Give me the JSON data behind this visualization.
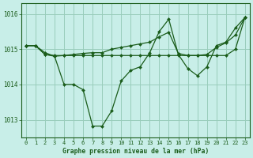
{
  "bg_color": "#c8eee8",
  "grid_color": "#99ccbb",
  "line_color": "#1a5c1a",
  "marker_color": "#1a5c1a",
  "xlabel": "Graphe pression niveau de la mer (hPa)",
  "xlabel_color": "#1a5c1a",
  "xlim": [
    -0.5,
    23.5
  ],
  "ylim": [
    1012.5,
    1016.3
  ],
  "yticks": [
    1013,
    1014,
    1015,
    1016
  ],
  "xticks": [
    0,
    1,
    2,
    3,
    4,
    5,
    6,
    7,
    8,
    9,
    10,
    11,
    12,
    13,
    14,
    15,
    16,
    17,
    18,
    19,
    20,
    21,
    22,
    23
  ],
  "series": [
    {
      "x": [
        0,
        1,
        2,
        3,
        4,
        5,
        6,
        7,
        8,
        9,
        10,
        11,
        12,
        13,
        14,
        15,
        16,
        17,
        18,
        19,
        20,
        21,
        22,
        23
      ],
      "y": [
        1015.1,
        1015.1,
        1014.9,
        1014.8,
        1014.0,
        1014.0,
        1013.85,
        1012.82,
        1012.82,
        1013.25,
        1014.1,
        1014.4,
        1014.5,
        1014.9,
        1015.5,
        1015.85,
        1014.85,
        1014.45,
        1014.25,
        1014.5,
        1015.1,
        1015.2,
        1015.6,
        1015.9
      ]
    },
    {
      "x": [
        0,
        1,
        2,
        3,
        4,
        5,
        6,
        7,
        8,
        9,
        10,
        11,
        12,
        13,
        14,
        15,
        16,
        17,
        18,
        19,
        20,
        21,
        22,
        23
      ],
      "y": [
        1015.1,
        1015.1,
        1014.85,
        1014.8,
        1014.82,
        1014.85,
        1014.88,
        1014.9,
        1014.9,
        1015.0,
        1015.05,
        1015.1,
        1015.15,
        1015.2,
        1015.35,
        1015.48,
        1014.88,
        1014.82,
        1014.82,
        1014.85,
        1015.05,
        1015.18,
        1015.4,
        1015.9
      ]
    },
    {
      "x": [
        0,
        1,
        2,
        3,
        4,
        5,
        6,
        7,
        8,
        9,
        10,
        11,
        12,
        13,
        14,
        15,
        16,
        17,
        18,
        19,
        20,
        21,
        22,
        23
      ],
      "y": [
        1015.1,
        1015.1,
        1014.85,
        1014.82,
        1014.82,
        1014.82,
        1014.82,
        1014.82,
        1014.82,
        1014.82,
        1014.82,
        1014.82,
        1014.82,
        1014.82,
        1014.82,
        1014.82,
        1014.82,
        1014.82,
        1014.82,
        1014.82,
        1014.82,
        1014.82,
        1015.0,
        1015.9
      ]
    }
  ]
}
